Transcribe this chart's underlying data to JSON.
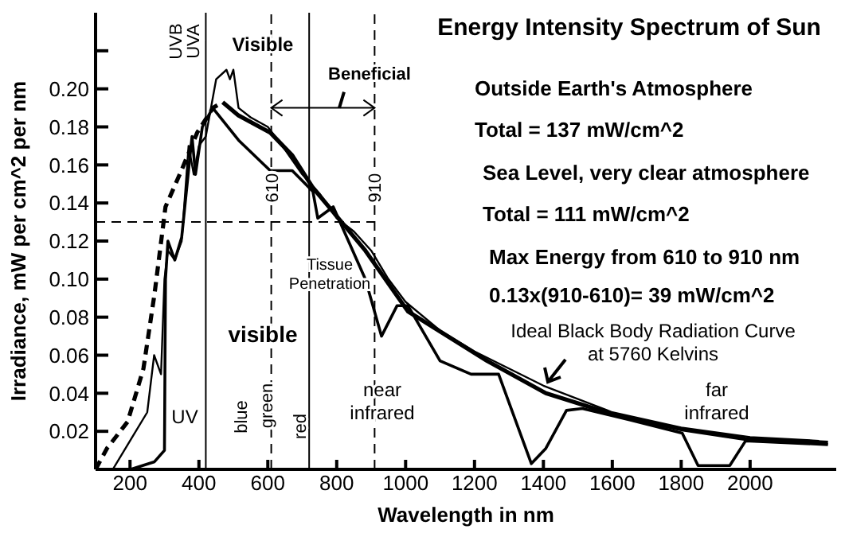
{
  "chart_data": {
    "type": "line",
    "title": "Energy Intensity Spectrum of Sun",
    "xlabel": "Wavelength in nm",
    "ylabel": "Irradiance, mW per cm^2 per nm",
    "xlim": [
      100,
      2250
    ],
    "xticks": [
      200,
      400,
      600,
      800,
      1000,
      1200,
      1400,
      1600,
      1800,
      2000
    ],
    "ylim": [
      0,
      0.24
    ],
    "yticks": [
      0.02,
      0.04,
      0.06,
      0.08,
      {
        "value": 0.1,
        "label": "0.10"
      },
      0.12,
      0.14,
      0.16,
      0.18,
      {
        "value": 0.2,
        "label": "0.20"
      },
      {
        "value": 0.22,
        "label": null
      }
    ],
    "series": [
      {
        "color": "#000000",
        "line_style": "dashed",
        "x": [
          100,
          133,
          193,
          239,
          271,
          303,
          349,
          395,
          441,
          469
        ],
        "values": [
          0,
          0.011,
          0.025,
          0.053,
          0.092,
          0.138,
          0.157,
          0.177,
          0.19,
          0.193
        ]
      },
      {
        "color": "#000000",
        "x": [
          469,
          515,
          607,
          671,
          731,
          791,
          883,
          1007,
          1237,
          1407,
          1619,
          1803,
          1987,
          2226
        ],
        "values": [
          0.193,
          0.186,
          0.177,
          0.165,
          0.148,
          0.135,
          0.115,
          0.083,
          0.057,
          0.04,
          0.028,
          0.021,
          0.016,
          0.014
        ]
      },
      {
        "color": "#000000",
        "x": [
          150,
          200,
          250,
          270,
          290,
          300,
          310,
          330,
          350,
          370,
          385,
          400,
          420,
          450,
          480,
          490,
          500,
          515,
          550,
          600,
          650,
          700,
          750,
          800,
          850,
          900,
          950,
          1000,
          1100,
          1200,
          1300,
          1400,
          1600,
          1800,
          2000,
          2200
        ],
        "values": [
          0,
          0.015,
          0.03,
          0.06,
          0.05,
          0.1,
          0.115,
          0.11,
          0.12,
          0.17,
          0.155,
          0.17,
          0.175,
          0.205,
          0.21,
          0.205,
          0.21,
          0.19,
          0.185,
          0.18,
          0.168,
          0.155,
          0.145,
          0.132,
          0.125,
          0.115,
          0.1,
          0.088,
          0.073,
          0.062,
          0.053,
          0.044,
          0.03,
          0.022,
          0.017,
          0.015
        ]
      },
      {
        "color": "#000000",
        "x": [
          202,
          271,
          300,
          303,
          310,
          330,
          350,
          380,
          390,
          410,
          440,
          515,
          607,
          671,
          731,
          745,
          790,
          883,
          930,
          975,
          1007,
          1100,
          1190,
          1270,
          1365,
          1407,
          1467,
          1513,
          1650,
          1803,
          1849,
          1941,
          1987,
          2226
        ],
        "values": [
          0,
          0.004,
          0.01,
          0.1,
          0.12,
          0.11,
          0.122,
          0.175,
          0.155,
          0.18,
          0.19,
          0.173,
          0.157,
          0.157,
          0.146,
          0.132,
          0.138,
          0.1,
          0.07,
          0.086,
          0.086,
          0.057,
          0.05,
          0.05,
          0.003,
          0.011,
          0.031,
          0.032,
          0.026,
          0.019,
          0.002,
          0.002,
          0.015,
          0.013
        ]
      }
    ],
    "ref_lines": [
      {
        "axis": "x",
        "value": 420,
        "label": null,
        "color": "#000000",
        "line_style": "solid"
      },
      {
        "axis": "x",
        "value": 720,
        "label": null,
        "color": "#000000",
        "line_style": "solid"
      },
      {
        "axis": "x",
        "value": 610,
        "label": "610",
        "color": "#000000",
        "line_style": "dashed"
      },
      {
        "axis": "x",
        "value": 910,
        "label": "910",
        "color": "#000000",
        "line_style": "dashed"
      },
      {
        "axis": "y",
        "value": 0.13,
        "label": null,
        "color": "#000000",
        "line_style": "dashed"
      }
    ],
    "annotations": [
      "UVB",
      "UVA",
      "Visible",
      "Beneficial",
      "Tissue Penetration",
      "visible",
      "UV",
      "blue",
      "green",
      "red",
      "near infrared",
      "far infrared",
      "Ideal Black Body Radiation Curve at 5760 Kelvins",
      "Outside Earth's Atmosphere",
      "Total =  137 mW/cm^2",
      "Sea Level, very clear atmosphere",
      "Total =  111 mW/cm^2",
      "Max Energy from 610 to 910 nm",
      "0.13x(910-610)= 39 mW/cm^2"
    ]
  }
}
